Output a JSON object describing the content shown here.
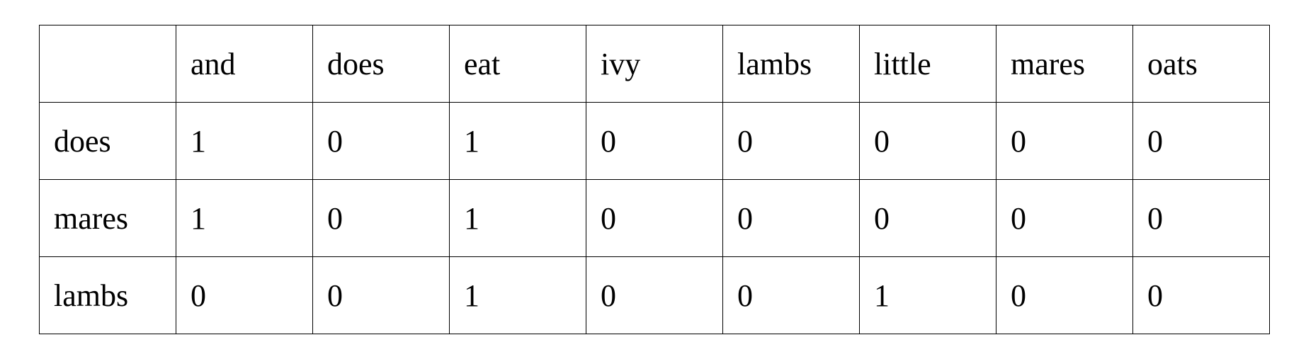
{
  "table": {
    "columns": [
      "and",
      "does",
      "eat",
      "ivy",
      "lambs",
      "little",
      "mares",
      "oats"
    ],
    "rows": [
      {
        "label": "does",
        "cells": [
          1,
          0,
          1,
          0,
          0,
          0,
          0,
          0
        ]
      },
      {
        "label": "mares",
        "cells": [
          1,
          0,
          1,
          0,
          0,
          0,
          0,
          0
        ]
      },
      {
        "label": "lambs",
        "cells": [
          0,
          0,
          1,
          0,
          0,
          1,
          0,
          0
        ]
      }
    ]
  }
}
